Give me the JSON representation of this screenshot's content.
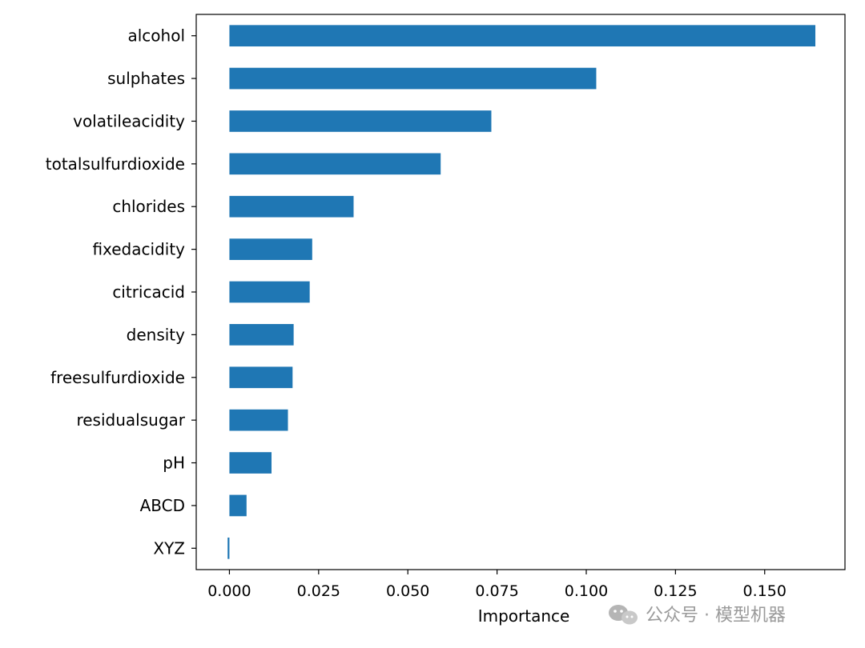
{
  "chart_data": {
    "type": "bar",
    "orientation": "horizontal",
    "categories": [
      "alcohol",
      "sulphates",
      "volatileacidity",
      "totalsulfurdioxide",
      "chlorides",
      "fixedacidity",
      "citricacid",
      "density",
      "freesulfurdioxide",
      "residualsugar",
      "pH",
      "ABCD",
      "XYZ"
    ],
    "values": [
      0.1642,
      0.1028,
      0.0734,
      0.0592,
      0.0348,
      0.0232,
      0.0225,
      0.018,
      0.0177,
      0.0164,
      0.0118,
      0.0048,
      -0.0005
    ],
    "xlabel": "Importance",
    "ylabel": "",
    "xlim": [
      -0.0093,
      0.1725
    ],
    "xticks": [
      0.0,
      0.025,
      0.05,
      0.075,
      0.1,
      0.125,
      0.15
    ],
    "xtick_labels": [
      "0.000",
      "0.025",
      "0.050",
      "0.075",
      "0.100",
      "0.125",
      "0.150"
    ],
    "bar_color": "#1f77b4",
    "grid": false
  },
  "watermark": {
    "text": "公众号 · 模型机器",
    "icon": "wechat-icon"
  }
}
